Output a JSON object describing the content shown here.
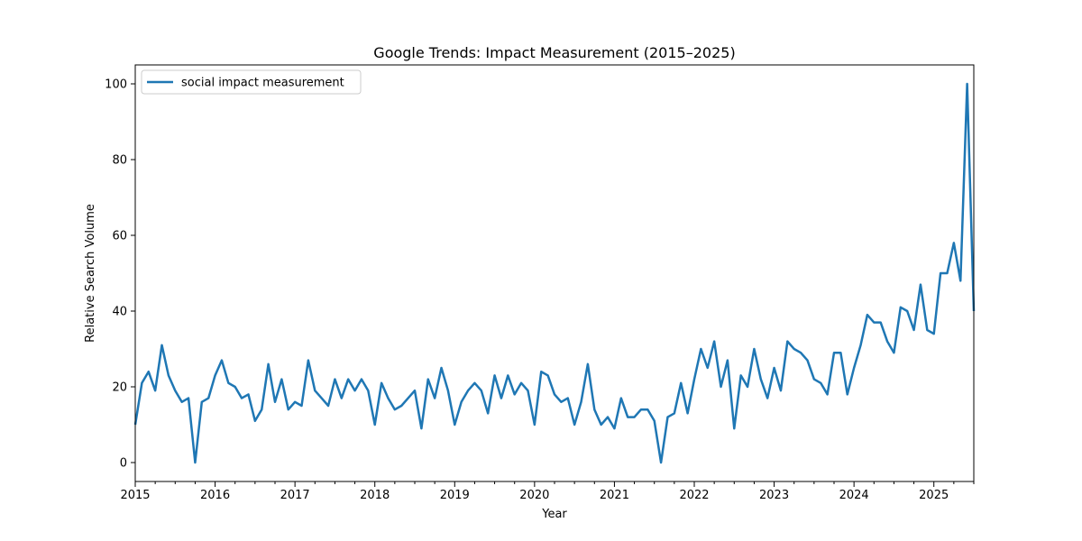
{
  "chart_data": {
    "type": "line",
    "title": "Google Trends: Impact Measurement (2015–2025)",
    "xlabel": "Year",
    "ylabel": "Relative Search Volume",
    "legend_position": "top-left",
    "grid": false,
    "x_start": "2015-01",
    "x_end": "2025-07",
    "xlim": [
      "2015-01",
      "2025-07"
    ],
    "ylim": [
      -5,
      105
    ],
    "x_ticks": [
      "2015",
      "2016",
      "2017",
      "2018",
      "2019",
      "2020",
      "2021",
      "2022",
      "2023",
      "2024",
      "2025"
    ],
    "y_ticks": [
      "0",
      "20",
      "40",
      "60",
      "80",
      "100"
    ],
    "series": [
      {
        "name": "social impact measurement",
        "color": "#1f77b4",
        "values": [
          10,
          21,
          24,
          19,
          31,
          23,
          19,
          16,
          17,
          0,
          16,
          17,
          23,
          27,
          21,
          20,
          17,
          18,
          11,
          14,
          26,
          16,
          22,
          14,
          16,
          15,
          27,
          19,
          17,
          15,
          22,
          17,
          22,
          19,
          22,
          19,
          10,
          21,
          17,
          14,
          15,
          17,
          19,
          9,
          22,
          17,
          25,
          19,
          10,
          16,
          19,
          21,
          19,
          13,
          23,
          17,
          23,
          18,
          21,
          19,
          10,
          24,
          23,
          18,
          16,
          17,
          10,
          16,
          26,
          14,
          10,
          12,
          9,
          17,
          12,
          12,
          14,
          14,
          11,
          0,
          12,
          13,
          21,
          13,
          22,
          30,
          25,
          32,
          20,
          27,
          9,
          23,
          20,
          30,
          22,
          17,
          25,
          19,
          32,
          30,
          29,
          27,
          22,
          21,
          18,
          29,
          29,
          18,
          25,
          31,
          39,
          37,
          37,
          32,
          29,
          41,
          40,
          35,
          47,
          35,
          34,
          50,
          50,
          58,
          48,
          100,
          40
        ]
      }
    ]
  }
}
